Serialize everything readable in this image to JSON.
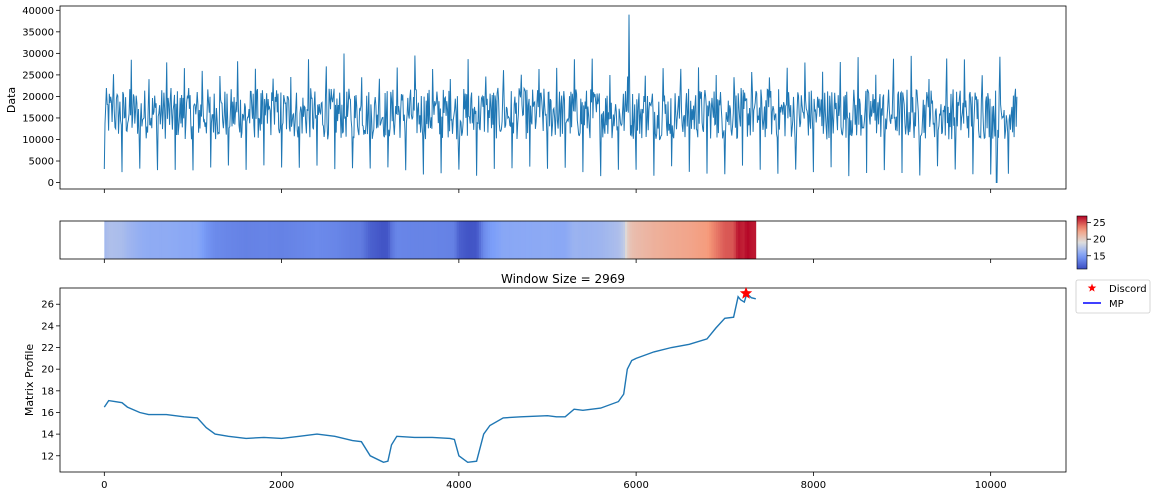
{
  "chart_data": [
    {
      "type": "line",
      "panel": "data",
      "ylabel": "Data",
      "xlim": [
        -500,
        10850
      ],
      "ylim": [
        -1500,
        41000
      ],
      "yticks": [
        0,
        5000,
        10000,
        15000,
        20000,
        25000,
        30000,
        35000,
        40000
      ],
      "yticklabels": [
        "0",
        "5000",
        "10000",
        "15000",
        "20000",
        "25000",
        "30000",
        "35000",
        "40000"
      ],
      "line_color": "#1f77b4",
      "series": {
        "length": 10300,
        "baseline_range": [
          10000,
          22000
        ],
        "peak_range": [
          24000,
          30000
        ],
        "trough_range": [
          1500,
          4000
        ],
        "notable_points": [
          {
            "x": 5920,
            "y": 39000
          },
          {
            "x": 10070,
            "y": 0
          }
        ]
      }
    },
    {
      "type": "heatmap",
      "panel": "matrix-profile-colorbar",
      "colormap": "coolwarm",
      "vmin": 11,
      "vmax": 27,
      "colorbar_ticks": [
        15,
        20,
        25
      ],
      "colorbar_ticklabels": [
        "15",
        "20",
        "25"
      ],
      "x_extent": [
        0,
        7350
      ]
    },
    {
      "type": "line",
      "panel": "matrix-profile",
      "title": "Window Size = 2969",
      "ylabel": "Matrix Profile",
      "xlim": [
        -500,
        10850
      ],
      "ylim": [
        10.5,
        27.5
      ],
      "xticks": [
        0,
        2000,
        4000,
        6000,
        8000,
        10000
      ],
      "xticklabels": [
        "0",
        "2000",
        "4000",
        "6000",
        "8000",
        "10000"
      ],
      "yticks": [
        12,
        14,
        16,
        18,
        20,
        22,
        24,
        26
      ],
      "yticklabels": [
        "12",
        "14",
        "16",
        "18",
        "20",
        "22",
        "24",
        "26"
      ],
      "line_color": "#1f77b4",
      "discord_color": "#ff0000",
      "legend": {
        "placement": "outside-right",
        "entries": [
          {
            "label": "Discord",
            "marker": "star",
            "color": "#ff0000"
          },
          {
            "label": "MP",
            "marker": "line",
            "color": "#0000ff"
          }
        ]
      },
      "points": [
        [
          0,
          16.5
        ],
        [
          50,
          17.1
        ],
        [
          120,
          17.0
        ],
        [
          200,
          16.9
        ],
        [
          260,
          16.5
        ],
        [
          400,
          16.0
        ],
        [
          500,
          15.8
        ],
        [
          700,
          15.8
        ],
        [
          900,
          15.6
        ],
        [
          1050,
          15.5
        ],
        [
          1150,
          14.6
        ],
        [
          1250,
          14.0
        ],
        [
          1400,
          13.8
        ],
        [
          1600,
          13.6
        ],
        [
          1800,
          13.7
        ],
        [
          2000,
          13.6
        ],
        [
          2200,
          13.8
        ],
        [
          2400,
          14.0
        ],
        [
          2600,
          13.8
        ],
        [
          2800,
          13.4
        ],
        [
          2900,
          13.3
        ],
        [
          3000,
          12.0
        ],
        [
          3150,
          11.4
        ],
        [
          3200,
          11.5
        ],
        [
          3240,
          13.0
        ],
        [
          3300,
          13.8
        ],
        [
          3500,
          13.7
        ],
        [
          3700,
          13.7
        ],
        [
          3900,
          13.6
        ],
        [
          3950,
          13.5
        ],
        [
          4000,
          12.0
        ],
        [
          4100,
          11.4
        ],
        [
          4200,
          11.5
        ],
        [
          4280,
          14.0
        ],
        [
          4350,
          14.8
        ],
        [
          4500,
          15.5
        ],
        [
          4700,
          15.6
        ],
        [
          5000,
          15.7
        ],
        [
          5100,
          15.6
        ],
        [
          5200,
          15.6
        ],
        [
          5300,
          16.3
        ],
        [
          5400,
          16.2
        ],
        [
          5600,
          16.4
        ],
        [
          5800,
          17.0
        ],
        [
          5860,
          17.7
        ],
        [
          5900,
          20.0
        ],
        [
          5950,
          20.8
        ],
        [
          6000,
          21.0
        ],
        [
          6200,
          21.6
        ],
        [
          6400,
          22.0
        ],
        [
          6600,
          22.3
        ],
        [
          6800,
          22.8
        ],
        [
          6900,
          23.8
        ],
        [
          7000,
          24.7
        ],
        [
          7100,
          24.8
        ],
        [
          7150,
          26.7
        ],
        [
          7180,
          26.4
        ],
        [
          7220,
          26.2
        ],
        [
          7250,
          27.0
        ],
        [
          7300,
          26.6
        ],
        [
          7350,
          26.5
        ]
      ],
      "discord": {
        "x": 7240,
        "y": 27.0
      }
    }
  ]
}
